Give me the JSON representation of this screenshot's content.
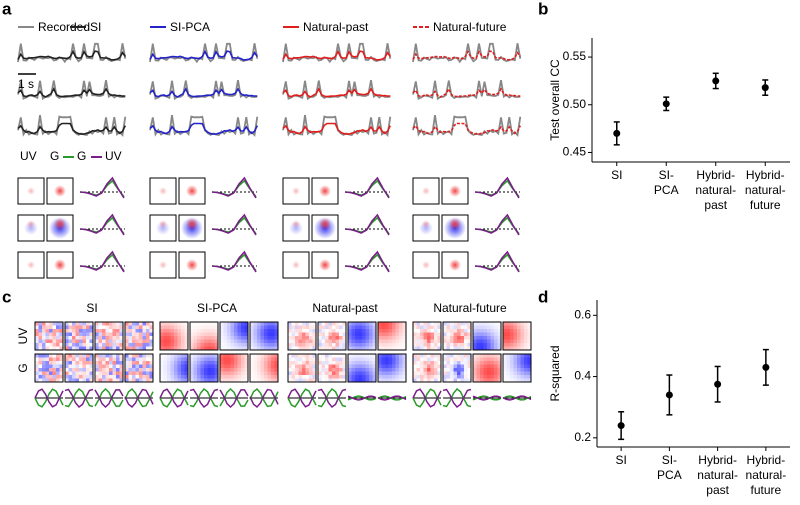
{
  "panel_a": {
    "label": "a",
    "legend": [
      "Recorded",
      "SI",
      "SI-PCA",
      "Natural-past",
      "Natural-future"
    ],
    "scale_bar": "1 s",
    "filter_squares": [
      "UV",
      "G"
    ],
    "filter_lines": [
      "G",
      "UV"
    ]
  },
  "panel_c": {
    "label": "c",
    "titles": [
      "SI",
      "SI-PCA",
      "Natural-past",
      "Natural-future"
    ],
    "rows": [
      "UV",
      "G"
    ]
  },
  "chart_data": [
    {
      "type": "errorbar",
      "panel_label": "b",
      "y_label": "Test overall CC",
      "categories": [
        "SI",
        "SI-\nPCA",
        "Hybrid-\nnatural-\npast",
        "Hybrid-\nnatural-\nfuture"
      ],
      "values": [
        0.47,
        0.501,
        0.525,
        0.518
      ],
      "errors": [
        0.012,
        0.007,
        0.008,
        0.008
      ],
      "color": "#000000",
      "ylim": [
        0.44,
        0.57
      ],
      "yticks": [
        0.45,
        {
          "value": 0.5,
          "label": "0.50"
        },
        {
          "value": 0.55,
          "label": "0.55"
        }
      ]
    },
    {
      "type": "errorbar",
      "panel_label": "d",
      "y_label": "R-squared",
      "categories": [
        "SI",
        "SI-\nPCA",
        "Hybrid-\nnatural-\npast",
        "Hybrid-\nnatural-\nfuture"
      ],
      "values": [
        0.24,
        0.34,
        0.375,
        0.43
      ],
      "errors": [
        0.045,
        0.065,
        0.058,
        0.058
      ],
      "color": "#000000",
      "ylim": [
        0.17,
        0.65
      ],
      "yticks": [
        0.2,
        0.4,
        0.6
      ]
    }
  ]
}
